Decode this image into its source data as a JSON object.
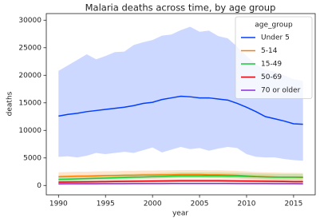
{
  "chart_data": {
    "type": "line",
    "title": "Malaria deaths across time, by age group",
    "x_label": "year",
    "y_label": "deaths",
    "legend_title": "age_group",
    "legend": "upper right",
    "x": [
      1990,
      1991,
      1992,
      1993,
      1994,
      1995,
      1996,
      1997,
      1998,
      1999,
      2000,
      2001,
      2002,
      2003,
      2004,
      2005,
      2006,
      2007,
      2008,
      2009,
      2010,
      2011,
      2012,
      2013,
      2014,
      2015,
      2016
    ],
    "xlim": [
      1988.7,
      2017.3
    ],
    "xticks": [
      1990,
      1995,
      2000,
      2005,
      2010,
      2015
    ],
    "ylim": [
      -1700,
      31200
    ],
    "yticks": [
      0,
      5000,
      10000,
      15000,
      20000,
      25000,
      30000
    ],
    "series": [
      {
        "name": "Under 5",
        "color": "#023eff",
        "values": [
          12600,
          12900,
          13100,
          13400,
          13600,
          13800,
          14000,
          14200,
          14500,
          14900,
          15100,
          15600,
          15900,
          16200,
          16100,
          15900,
          15900,
          15700,
          15500,
          14900,
          14200,
          13400,
          12500,
          12100,
          11700,
          11200,
          11100
        ],
        "upper": [
          20800,
          21800,
          22800,
          23800,
          22900,
          23500,
          24200,
          24300,
          25500,
          26000,
          26400,
          27200,
          27400,
          28200,
          28800,
          27900,
          28100,
          27100,
          26700,
          25200,
          23500,
          22000,
          21000,
          20700,
          20000,
          19300,
          19000
        ],
        "lower": [
          5200,
          5300,
          5100,
          5400,
          5900,
          5700,
          5900,
          6100,
          5900,
          6400,
          6900,
          6000,
          6500,
          7000,
          6600,
          6800,
          6300,
          6700,
          7000,
          6800,
          5700,
          5200,
          5100,
          5100,
          4800,
          4600,
          4500
        ]
      },
      {
        "name": "5-14",
        "color": "#ff7c00",
        "values": [
          1600,
          1650,
          1700,
          1700,
          1750,
          1800,
          1800,
          1850,
          1850,
          1900,
          1900,
          1950,
          1950,
          2000,
          2000,
          2000,
          1950,
          1950,
          1900,
          1850,
          1750,
          1650,
          1600,
          1550,
          1500,
          1500,
          1450
        ],
        "upper": [
          2400,
          2450,
          2500,
          2500,
          2550,
          2600,
          2600,
          2650,
          2650,
          2700,
          2700,
          2750,
          2750,
          2800,
          2800,
          2800,
          2750,
          2750,
          2700,
          2650,
          2550,
          2450,
          2400,
          2350,
          2300,
          2300,
          2250
        ],
        "lower": [
          1000,
          1050,
          1100,
          1100,
          1150,
          1200,
          1200,
          1250,
          1250,
          1300,
          1300,
          1350,
          1350,
          1400,
          1400,
          1400,
          1350,
          1350,
          1300,
          1250,
          1150,
          1050,
          1000,
          950,
          900,
          900,
          850
        ]
      },
      {
        "name": "15-49",
        "color": "#1ac938",
        "values": [
          1100,
          1150,
          1200,
          1250,
          1300,
          1350,
          1400,
          1450,
          1500,
          1550,
          1600,
          1650,
          1700,
          1750,
          1750,
          1750,
          1750,
          1750,
          1700,
          1700,
          1650,
          1600,
          1550,
          1500,
          1500,
          1500,
          1500
        ],
        "upper": [
          1700,
          1750,
          1800,
          1850,
          1900,
          1950,
          2000,
          2050,
          2100,
          2150,
          2200,
          2250,
          2300,
          2350,
          2350,
          2350,
          2350,
          2350,
          2300,
          2300,
          2250,
          2200,
          2150,
          2100,
          2100,
          2100,
          2100
        ],
        "lower": [
          700,
          750,
          800,
          850,
          900,
          950,
          1000,
          1050,
          1100,
          1150,
          1200,
          1250,
          1300,
          1350,
          1350,
          1350,
          1350,
          1350,
          1300,
          1300,
          1250,
          1200,
          1150,
          1100,
          1100,
          1100,
          1100
        ]
      },
      {
        "name": "50-69",
        "color": "#e8000b",
        "values": [
          600,
          620,
          640,
          660,
          680,
          700,
          720,
          740,
          760,
          780,
          800,
          820,
          840,
          860,
          860,
          860,
          860,
          860,
          840,
          820,
          800,
          780,
          760,
          740,
          720,
          700,
          700
        ],
        "upper": [
          900,
          920,
          940,
          960,
          980,
          1000,
          1020,
          1040,
          1060,
          1080,
          1100,
          1120,
          1140,
          1160,
          1160,
          1160,
          1160,
          1160,
          1140,
          1120,
          1100,
          1080,
          1060,
          1040,
          1020,
          1000,
          1000
        ],
        "lower": [
          350,
          370,
          390,
          410,
          430,
          450,
          470,
          490,
          510,
          530,
          550,
          570,
          590,
          610,
          610,
          610,
          610,
          610,
          590,
          570,
          550,
          530,
          510,
          490,
          470,
          450,
          450
        ]
      },
      {
        "name": "70 or older",
        "color": "#8b2be2",
        "values": [
          300,
          305,
          310,
          315,
          320,
          325,
          330,
          335,
          340,
          345,
          350,
          355,
          360,
          365,
          365,
          365,
          365,
          365,
          360,
          355,
          350,
          345,
          340,
          335,
          330,
          325,
          320
        ],
        "upper": [
          450,
          455,
          460,
          465,
          470,
          475,
          480,
          485,
          490,
          495,
          500,
          505,
          510,
          515,
          515,
          515,
          515,
          515,
          510,
          505,
          500,
          495,
          490,
          485,
          480,
          475,
          470
        ],
        "lower": [
          180,
          185,
          190,
          195,
          200,
          205,
          210,
          215,
          220,
          225,
          230,
          235,
          240,
          245,
          245,
          245,
          245,
          245,
          240,
          235,
          230,
          225,
          220,
          215,
          210,
          205,
          200
        ]
      }
    ]
  }
}
